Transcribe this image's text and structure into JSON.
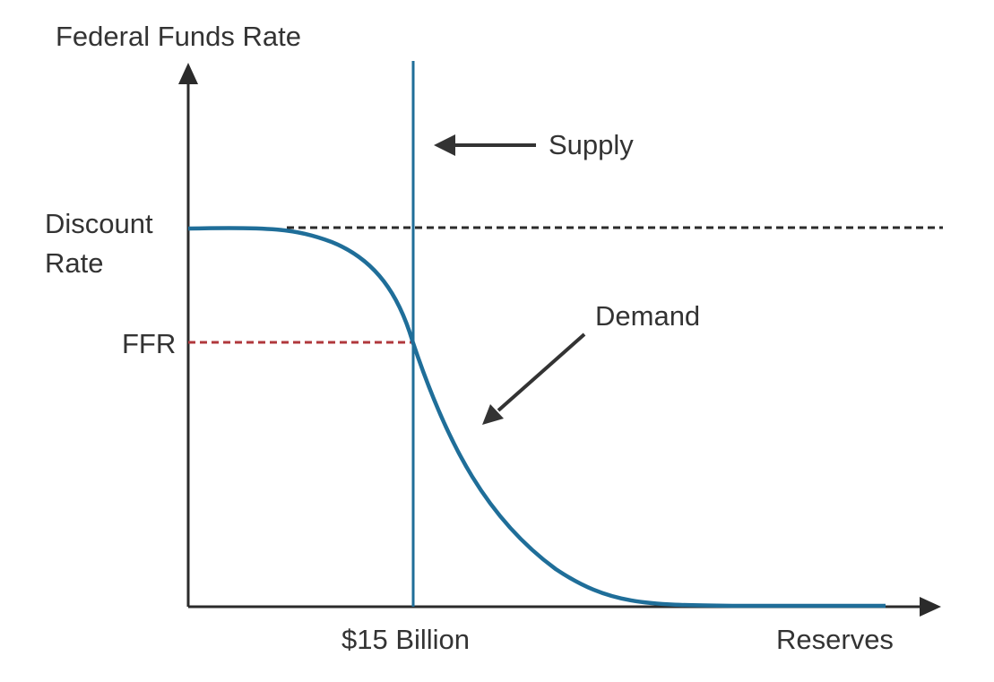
{
  "labels": {
    "y_axis": "Federal Funds Rate",
    "x_axis": "Reserves",
    "discount_line1": "Discount",
    "discount_line2": "Rate",
    "ffr": "FFR",
    "billion": "$15 Billion",
    "supply": "Supply",
    "demand": "Demand"
  },
  "colors": {
    "axis": "#2b2b2b",
    "curve": "#1f6e99",
    "supply_line": "#1f6e99",
    "discount_dashes": "#2b2b2b",
    "ffr_dashes": "#b0383c",
    "text": "#333333",
    "arrow": "#333333"
  }
}
